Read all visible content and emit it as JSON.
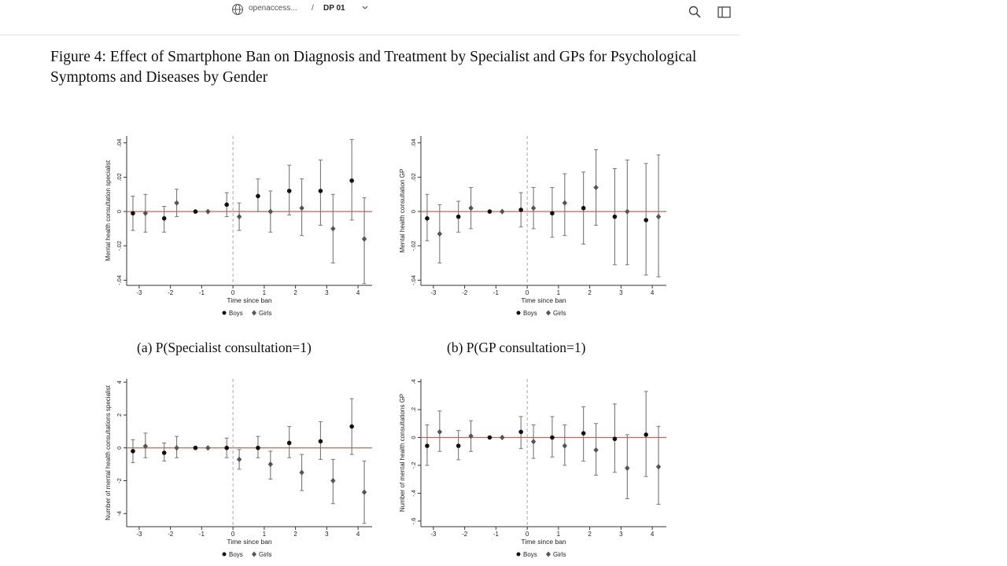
{
  "topbar": {
    "site": "openaccess...",
    "separator": "/",
    "doc": "DP 01"
  },
  "figure": {
    "title": "Figure 4: Effect of Smartphone Ban on Diagnosis and Treatment by Specialist and GPs for Psychological Symptoms and Diseases by Gender"
  },
  "captions": {
    "a": "(a) P(Specialist consultation=1)",
    "b": "(b) P(GP consultation=1)"
  },
  "chart_data": [
    {
      "type": "scatter",
      "panel": "a",
      "xlabel": "Time since ban",
      "ylabel": "Mental health consultation specialist",
      "xticks": [
        -3,
        -2,
        -1,
        0,
        1,
        2,
        3,
        4
      ],
      "yticks": [
        -0.04,
        -0.02,
        0,
        0.02,
        0.04
      ],
      "ytick_labels": [
        "-.04",
        "-.02",
        "0",
        ".02",
        ".04"
      ],
      "ylim": [
        -0.043,
        0.044
      ],
      "xlim": [
        -3.4,
        4.45
      ],
      "ref_line_y": 0,
      "ref_line_x": 0,
      "legend": {
        "position": "bottom-center"
      },
      "series": [
        {
          "name": "Boys",
          "marker": "circle",
          "x": [
            -3,
            -2,
            -1,
            0,
            1,
            2,
            3,
            4
          ],
          "y": [
            -0.001,
            -0.004,
            0.0,
            0.004,
            0.009,
            0.012,
            0.012,
            0.018
          ],
          "lo": [
            -0.011,
            -0.012,
            0.0,
            -0.003,
            0.0,
            -0.002,
            -0.008,
            -0.005
          ],
          "hi": [
            0.009,
            0.003,
            0.0,
            0.011,
            0.019,
            0.027,
            0.03,
            0.042
          ]
        },
        {
          "name": "Girls",
          "marker": "diamond",
          "x": [
            -3,
            -2,
            -1,
            0,
            1,
            2,
            3,
            4
          ],
          "y": [
            -0.001,
            0.005,
            0.0,
            -0.003,
            0.0,
            0.002,
            -0.01,
            -0.016
          ],
          "lo": [
            -0.012,
            -0.003,
            0.0,
            -0.011,
            -0.012,
            -0.014,
            -0.03,
            -0.042
          ],
          "hi": [
            0.01,
            0.013,
            0.0,
            0.005,
            0.012,
            0.019,
            0.01,
            0.008
          ]
        }
      ]
    },
    {
      "type": "scatter",
      "panel": "b",
      "xlabel": "Time since ban",
      "ylabel": "Mental health consultation GP",
      "xticks": [
        -3,
        -2,
        -1,
        0,
        1,
        2,
        3,
        4
      ],
      "yticks": [
        -0.04,
        -0.02,
        0,
        0.02,
        0.04
      ],
      "ytick_labels": [
        "-.04",
        "-.02",
        "0",
        ".02",
        ".04"
      ],
      "ylim": [
        -0.043,
        0.044
      ],
      "xlim": [
        -3.4,
        4.45
      ],
      "ref_line_y": 0,
      "ref_line_x": 0,
      "legend": {
        "position": "bottom-center"
      },
      "series": [
        {
          "name": "Boys",
          "marker": "circle",
          "x": [
            -3,
            -2,
            -1,
            0,
            1,
            2,
            3,
            4
          ],
          "y": [
            -0.004,
            -0.003,
            0.0,
            0.001,
            -0.001,
            0.002,
            -0.003,
            -0.005
          ],
          "lo": [
            -0.017,
            -0.012,
            0.0,
            -0.009,
            -0.015,
            -0.019,
            -0.031,
            -0.037
          ],
          "hi": [
            0.01,
            0.006,
            0.0,
            0.011,
            0.014,
            0.023,
            0.025,
            0.028
          ]
        },
        {
          "name": "Girls",
          "marker": "diamond",
          "x": [
            -3,
            -2,
            -1,
            0,
            1,
            2,
            3,
            4
          ],
          "y": [
            -0.013,
            0.002,
            0.0,
            0.002,
            0.005,
            0.014,
            0.0,
            -0.003
          ],
          "lo": [
            -0.03,
            -0.01,
            0.0,
            -0.01,
            -0.014,
            -0.008,
            -0.031,
            -0.038
          ],
          "hi": [
            0.004,
            0.014,
            0.0,
            0.014,
            0.022,
            0.036,
            0.03,
            0.033
          ]
        }
      ]
    },
    {
      "type": "scatter",
      "panel": "c",
      "xlabel": "Time since ban",
      "ylabel": "Number of mental health consultations specialist",
      "xticks": [
        -3,
        -2,
        -1,
        0,
        1,
        2,
        3,
        4
      ],
      "yticks": [
        -4,
        -2,
        0,
        2,
        4
      ],
      "ytick_labels": [
        "-4",
        "-2",
        "0",
        "2",
        "4"
      ],
      "ylim": [
        -4.8,
        4.2
      ],
      "xlim": [
        -3.4,
        4.45
      ],
      "ref_line_y": 0,
      "ref_line_x": 0,
      "legend": {
        "position": "bottom-center"
      },
      "series": [
        {
          "name": "Boys",
          "marker": "circle",
          "x": [
            -3,
            -2,
            -1,
            0,
            1,
            2,
            3,
            4
          ],
          "y": [
            -0.2,
            -0.3,
            0.0,
            0.0,
            0.0,
            0.3,
            0.4,
            1.3
          ],
          "lo": [
            -0.9,
            -0.8,
            0.0,
            -0.6,
            -0.6,
            -0.6,
            -0.7,
            -0.4
          ],
          "hi": [
            0.5,
            0.3,
            0.0,
            0.6,
            0.7,
            1.3,
            1.6,
            3.0
          ]
        },
        {
          "name": "Girls",
          "marker": "diamond",
          "x": [
            -3,
            -2,
            -1,
            0,
            1,
            2,
            3,
            4
          ],
          "y": [
            0.1,
            0.0,
            0.0,
            -0.7,
            -1.0,
            -1.5,
            -2.0,
            -2.7
          ],
          "lo": [
            -0.6,
            -0.6,
            0.0,
            -1.3,
            -1.9,
            -2.6,
            -3.4,
            -4.6
          ],
          "hi": [
            0.9,
            0.7,
            0.0,
            -0.1,
            -0.2,
            -0.4,
            -0.7,
            -0.8
          ]
        }
      ]
    },
    {
      "type": "scatter",
      "panel": "d",
      "xlabel": "Time since ban",
      "ylabel": "Number of mental health consultations GP",
      "xticks": [
        -3,
        -2,
        -1,
        0,
        1,
        2,
        3,
        4
      ],
      "yticks": [
        -0.6,
        -0.4,
        -0.2,
        0,
        0.2,
        0.4
      ],
      "ytick_labels": [
        "-.6",
        "-.4",
        "-.2",
        "0",
        ".2",
        ".4"
      ],
      "ylim": [
        -0.64,
        0.42
      ],
      "xlim": [
        -3.4,
        4.45
      ],
      "ref_line_y": 0,
      "ref_line_x": 0,
      "legend": {
        "position": "bottom-center"
      },
      "series": [
        {
          "name": "Boys",
          "marker": "circle",
          "x": [
            -3,
            -2,
            -1,
            0,
            1,
            2,
            3,
            4
          ],
          "y": [
            -0.06,
            -0.06,
            0.0,
            0.04,
            0.0,
            0.03,
            -0.01,
            0.02
          ],
          "lo": [
            -0.2,
            -0.16,
            0.0,
            -0.08,
            -0.14,
            -0.17,
            -0.25,
            -0.28
          ],
          "hi": [
            0.09,
            0.05,
            0.0,
            0.15,
            0.15,
            0.22,
            0.24,
            0.33
          ]
        },
        {
          "name": "Girls",
          "marker": "diamond",
          "x": [
            -3,
            -2,
            -1,
            0,
            1,
            2,
            3,
            4
          ],
          "y": [
            0.04,
            0.01,
            0.0,
            -0.03,
            -0.06,
            -0.09,
            -0.22,
            -0.21
          ],
          "lo": [
            -0.1,
            -0.1,
            0.0,
            -0.15,
            -0.2,
            -0.27,
            -0.44,
            -0.48
          ],
          "hi": [
            0.19,
            0.12,
            0.0,
            0.09,
            0.09,
            0.1,
            0.02,
            0.08
          ]
        }
      ]
    }
  ]
}
